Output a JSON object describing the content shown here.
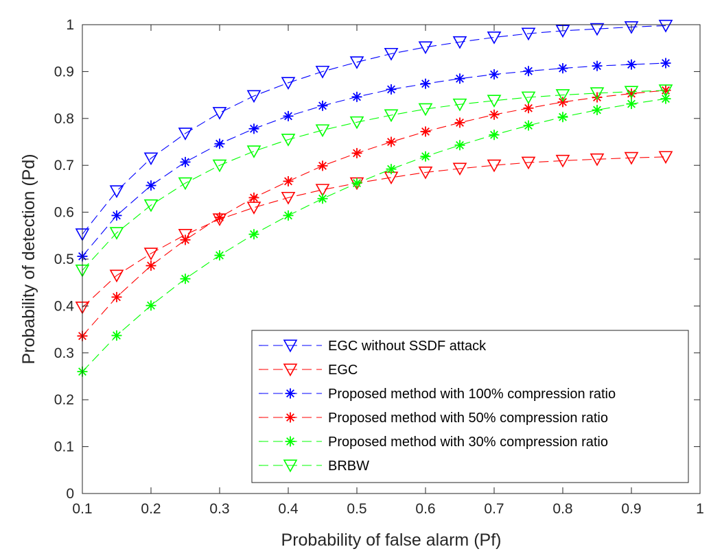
{
  "chart_data": {
    "type": "line",
    "title": "",
    "xlabel": "Probability of false alarm (Pf)",
    "ylabel": "Probability of detection (Pd)",
    "xlim": [
      0.1,
      1
    ],
    "ylim": [
      0,
      1
    ],
    "xticks": [
      "0.1",
      "0.2",
      "0.3",
      "0.4",
      "0.5",
      "0.6",
      "0.7",
      "0.8",
      "0.9",
      "1"
    ],
    "yticks": [
      "0",
      "0.1",
      "0.2",
      "0.3",
      "0.4",
      "0.5",
      "0.6",
      "0.7",
      "0.8",
      "0.9",
      "1"
    ],
    "grid": false,
    "legend_position": "bottom-right",
    "x": [
      0.1,
      0.15,
      0.2,
      0.25,
      0.3,
      0.35,
      0.4,
      0.45,
      0.5,
      0.55,
      0.6,
      0.65,
      0.7,
      0.75,
      0.8,
      0.85,
      0.9,
      0.95
    ],
    "series": [
      {
        "name": "EGC without SSDF attack",
        "color": "#0000ff",
        "marker": "triangle-down",
        "values": [
          0.553,
          0.645,
          0.715,
          0.768,
          0.812,
          0.848,
          0.876,
          0.9,
          0.92,
          0.938,
          0.952,
          0.963,
          0.973,
          0.981,
          0.987,
          0.991,
          0.995,
          0.998
        ]
      },
      {
        "name": "EGC",
        "color": "#ff0000",
        "marker": "triangle-down",
        "values": [
          0.397,
          0.465,
          0.512,
          0.552,
          0.585,
          0.61,
          0.631,
          0.648,
          0.662,
          0.674,
          0.685,
          0.693,
          0.7,
          0.706,
          0.71,
          0.713,
          0.716,
          0.718
        ]
      },
      {
        "name": "Proposed method with 100% compression ratio",
        "color": "#0000ff",
        "marker": "asterisk",
        "values": [
          0.506,
          0.593,
          0.657,
          0.707,
          0.746,
          0.778,
          0.805,
          0.827,
          0.846,
          0.862,
          0.874,
          0.885,
          0.894,
          0.901,
          0.907,
          0.912,
          0.915,
          0.918
        ]
      },
      {
        "name": "Proposed method with 50% compression ratio",
        "color": "#ff0000",
        "marker": "asterisk",
        "values": [
          0.336,
          0.419,
          0.486,
          0.541,
          0.589,
          0.631,
          0.666,
          0.699,
          0.726,
          0.75,
          0.772,
          0.791,
          0.808,
          0.822,
          0.835,
          0.845,
          0.853,
          0.86
        ]
      },
      {
        "name": "Proposed method with 30% compression ratio",
        "color": "#00ff00",
        "marker": "asterisk",
        "values": [
          0.26,
          0.337,
          0.401,
          0.458,
          0.508,
          0.553,
          0.593,
          0.629,
          0.662,
          0.692,
          0.719,
          0.743,
          0.765,
          0.785,
          0.803,
          0.818,
          0.831,
          0.842
        ]
      },
      {
        "name": "BRBW",
        "color": "#00ff00",
        "marker": "triangle-down",
        "values": [
          0.476,
          0.556,
          0.615,
          0.662,
          0.7,
          0.73,
          0.755,
          0.775,
          0.792,
          0.807,
          0.82,
          0.83,
          0.838,
          0.845,
          0.85,
          0.854,
          0.857,
          0.86
        ]
      }
    ]
  }
}
